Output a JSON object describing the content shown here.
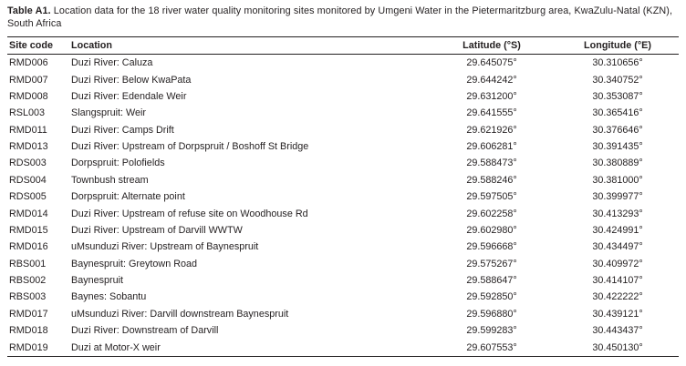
{
  "table": {
    "caption_label": "Table A1.",
    "caption_text": " Location data for the 18 river water quality monitoring sites monitored by Umgeni Water in the Pietermaritzburg area, KwaZulu-Natal (KZN), South Africa",
    "columns": [
      "Site code",
      "Location",
      "Latitude (°S)",
      "Longitude (°E)"
    ],
    "rows": [
      [
        "RMD006",
        "Duzi River: Caluza",
        "29.645075°",
        "30.310656°"
      ],
      [
        "RMD007",
        "Duzi River: Below KwaPata",
        "29.644242°",
        "30.340752°"
      ],
      [
        "RMD008",
        "Duzi River: Edendale Weir",
        "29.631200°",
        "30.353087°"
      ],
      [
        "RSL003",
        "Slangspruit: Weir",
        "29.641555°",
        "30.365416°"
      ],
      [
        "RMD011",
        "Duzi River: Camps Drift",
        "29.621926°",
        "30.376646°"
      ],
      [
        "RMD013",
        "Duzi River: Upstream of Dorpspruit / Boshoff St Bridge",
        "29.606281°",
        "30.391435°"
      ],
      [
        "RDS003",
        "Dorpspruit: Polofields",
        "29.588473°",
        "30.380889°"
      ],
      [
        "RDS004",
        "Townbush stream",
        "29.588246°",
        "30.381000°"
      ],
      [
        "RDS005",
        "Dorpspruit: Alternate point",
        "29.597505°",
        "30.399977°"
      ],
      [
        "RMD014",
        "Duzi River: Upstream of refuse site on Woodhouse Rd",
        "29.602258°",
        "30.413293°"
      ],
      [
        "RMD015",
        "Duzi River: Upstream of Darvill WWTW",
        "29.602980°",
        "30.424991°"
      ],
      [
        "RMD016",
        "uMsunduzi River: Upstream of Baynespruit",
        "29.596668°",
        "30.434497°"
      ],
      [
        "RBS001",
        "Baynespruit: Greytown Road",
        "29.575267°",
        "30.409972°"
      ],
      [
        "RBS002",
        "Baynespruit",
        "29.588647°",
        "30.414107°"
      ],
      [
        "RBS003",
        "Baynes: Sobantu",
        "29.592850°",
        "30.422222°"
      ],
      [
        "RMD017",
        "uMsunduzi River: Darvill downstream Baynespruit",
        "29.596880°",
        "30.439121°"
      ],
      [
        "RMD018",
        "Duzi River: Downstream of Darvill",
        "29.599283°",
        "30.443437°"
      ],
      [
        "RMD019",
        "Duzi at Motor-X weir",
        "29.607553°",
        "30.450130°"
      ]
    ],
    "text_color": "#231f20",
    "rule_color": "#231f20"
  }
}
